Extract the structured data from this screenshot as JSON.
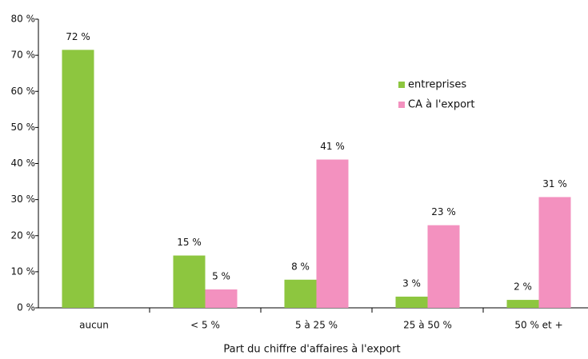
{
  "chart_data": {
    "type": "bar",
    "categories": [
      "aucun",
      "< 5 %",
      "5 à 25 %",
      "25 à 50 %",
      "50 % et +"
    ],
    "series": [
      {
        "name": "entreprises",
        "color": "#8dc63f",
        "values": [
          71.5,
          14.5,
          7.8,
          3.1,
          2.2
        ],
        "value_labels": [
          "72 %",
          "15 %",
          "8 %",
          "3 %",
          "2 %"
        ]
      },
      {
        "name": "CA à l'export",
        "color": "#f391bf",
        "values": [
          null,
          5.1,
          41.1,
          22.9,
          30.7
        ],
        "value_labels": [
          null,
          "5 %",
          "41 %",
          "23 %",
          "31 %"
        ]
      }
    ],
    "xlabel": "Part du chiffre d'affaires à l'export",
    "ylim": [
      0,
      80
    ],
    "yticks": [
      {
        "value": 0,
        "label": "0 %"
      },
      {
        "value": 10,
        "label": "10 %"
      },
      {
        "value": 20,
        "label": "20 %"
      },
      {
        "value": 30,
        "label": "30 %"
      },
      {
        "value": 40,
        "label": "40 %"
      },
      {
        "value": 50,
        "label": "50 %"
      },
      {
        "value": 60,
        "label": "60 %"
      },
      {
        "value": 70,
        "label": "70 %"
      },
      {
        "value": 80,
        "label": "80 %"
      }
    ],
    "legend": "upper right"
  }
}
